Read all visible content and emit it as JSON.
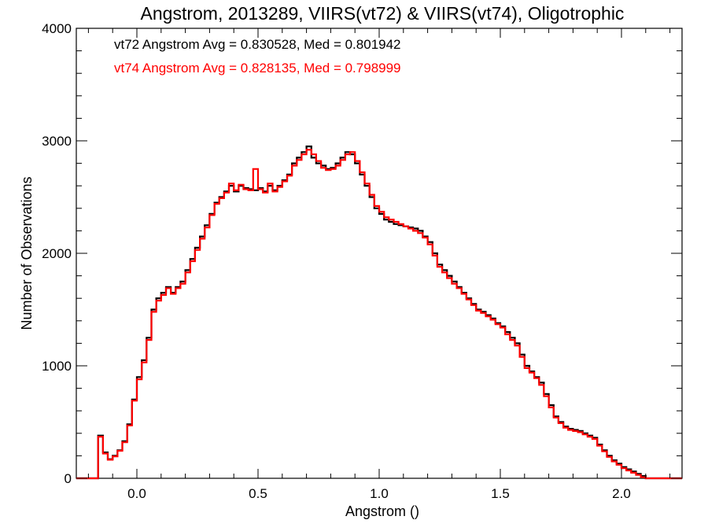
{
  "chart_data": {
    "type": "line",
    "step": true,
    "title": "Angstrom, 2013289, VIIRS(vt72) & VIIRS(vt74), Oligotrophic",
    "xlabel": "Angstrom ()",
    "ylabel": "Number of Observations",
    "xlim": [
      -0.25,
      2.25
    ],
    "ylim": [
      0,
      4000
    ],
    "xticks": [
      "0.0",
      "0.5",
      "1.0",
      "1.5",
      "2.0"
    ],
    "yticks": [
      "0",
      "1000",
      "2000",
      "3000",
      "4000"
    ],
    "grid": false,
    "annotations": [
      {
        "text": "vt72 Angstrom Avg = 0.830528, Med = 0.801942",
        "color": "#000000"
      },
      {
        "text": "vt74 Angstrom Avg = 0.828135, Med = 0.798999",
        "color": "#ff0000"
      }
    ],
    "series": [
      {
        "color": "#000000",
        "x": [
          -0.25,
          -0.165,
          -0.16,
          -0.14,
          -0.12,
          -0.1,
          -0.08,
          -0.06,
          -0.04,
          -0.02,
          0.0,
          0.02,
          0.04,
          0.06,
          0.08,
          0.1,
          0.12,
          0.14,
          0.16,
          0.18,
          0.2,
          0.22,
          0.24,
          0.26,
          0.28,
          0.3,
          0.32,
          0.34,
          0.36,
          0.38,
          0.4,
          0.42,
          0.44,
          0.46,
          0.48,
          0.5,
          0.52,
          0.54,
          0.56,
          0.58,
          0.6,
          0.62,
          0.64,
          0.66,
          0.68,
          0.7,
          0.72,
          0.74,
          0.76,
          0.78,
          0.8,
          0.82,
          0.84,
          0.86,
          0.88,
          0.9,
          0.92,
          0.94,
          0.96,
          0.98,
          1.0,
          1.02,
          1.04,
          1.06,
          1.08,
          1.1,
          1.12,
          1.14,
          1.16,
          1.18,
          1.2,
          1.22,
          1.24,
          1.26,
          1.28,
          1.3,
          1.32,
          1.34,
          1.36,
          1.38,
          1.4,
          1.42,
          1.44,
          1.46,
          1.48,
          1.5,
          1.52,
          1.54,
          1.56,
          1.58,
          1.6,
          1.62,
          1.64,
          1.66,
          1.68,
          1.7,
          1.72,
          1.74,
          1.76,
          1.78,
          1.8,
          1.82,
          1.84,
          1.86,
          1.88,
          1.9,
          1.92,
          1.94,
          1.96,
          1.98,
          2.0,
          2.02,
          2.04,
          2.06,
          2.08,
          2.1,
          2.12,
          2.14,
          2.16,
          2.25
        ],
        "y": [
          0,
          0,
          380,
          230,
          170,
          200,
          250,
          330,
          480,
          700,
          900,
          1050,
          1250,
          1500,
          1600,
          1650,
          1700,
          1650,
          1700,
          1750,
          1850,
          1950,
          2050,
          2150,
          2250,
          2350,
          2450,
          2500,
          2550,
          2600,
          2550,
          2600,
          2580,
          2570,
          2560,
          2580,
          2550,
          2600,
          2560,
          2600,
          2650,
          2700,
          2800,
          2850,
          2900,
          2950,
          2850,
          2800,
          2780,
          2750,
          2760,
          2800,
          2850,
          2900,
          2880,
          2800,
          2700,
          2600,
          2500,
          2400,
          2350,
          2300,
          2280,
          2260,
          2250,
          2240,
          2230,
          2220,
          2200,
          2150,
          2100,
          2000,
          1900,
          1850,
          1800,
          1750,
          1700,
          1650,
          1600,
          1550,
          1500,
          1480,
          1450,
          1420,
          1380,
          1350,
          1300,
          1250,
          1200,
          1100,
          1000,
          950,
          900,
          850,
          750,
          650,
          550,
          500,
          460,
          440,
          430,
          420,
          400,
          380,
          360,
          300,
          250,
          200,
          160,
          130,
          100,
          80,
          60,
          40,
          20,
          0,
          0,
          0,
          0,
          0
        ]
      },
      {
        "color": "#ff0000",
        "x": [
          -0.25,
          -0.165,
          -0.16,
          -0.14,
          -0.12,
          -0.1,
          -0.08,
          -0.06,
          -0.04,
          -0.02,
          0.0,
          0.02,
          0.04,
          0.06,
          0.08,
          0.1,
          0.12,
          0.14,
          0.16,
          0.18,
          0.2,
          0.22,
          0.24,
          0.26,
          0.28,
          0.3,
          0.32,
          0.34,
          0.36,
          0.38,
          0.4,
          0.42,
          0.44,
          0.46,
          0.48,
          0.5,
          0.52,
          0.54,
          0.56,
          0.58,
          0.6,
          0.62,
          0.64,
          0.66,
          0.68,
          0.7,
          0.72,
          0.74,
          0.76,
          0.78,
          0.8,
          0.82,
          0.84,
          0.86,
          0.88,
          0.9,
          0.92,
          0.94,
          0.96,
          0.98,
          1.0,
          1.02,
          1.04,
          1.06,
          1.08,
          1.1,
          1.12,
          1.14,
          1.16,
          1.18,
          1.2,
          1.22,
          1.24,
          1.26,
          1.28,
          1.3,
          1.32,
          1.34,
          1.36,
          1.38,
          1.4,
          1.42,
          1.44,
          1.46,
          1.48,
          1.5,
          1.52,
          1.54,
          1.56,
          1.58,
          1.6,
          1.62,
          1.64,
          1.66,
          1.68,
          1.7,
          1.72,
          1.74,
          1.76,
          1.78,
          1.8,
          1.82,
          1.84,
          1.86,
          1.88,
          1.9,
          1.92,
          1.94,
          1.96,
          1.98,
          2.0,
          2.02,
          2.04,
          2.06,
          2.08,
          2.1,
          2.12,
          2.14,
          2.16,
          2.25
        ],
        "y": [
          0,
          0,
          370,
          220,
          165,
          195,
          245,
          320,
          470,
          690,
          880,
          1030,
          1230,
          1480,
          1580,
          1630,
          1690,
          1640,
          1690,
          1730,
          1830,
          1930,
          2030,
          2130,
          2230,
          2340,
          2440,
          2490,
          2540,
          2620,
          2560,
          2610,
          2570,
          2560,
          2750,
          2570,
          2540,
          2620,
          2550,
          2590,
          2640,
          2690,
          2780,
          2830,
          2880,
          2920,
          2880,
          2820,
          2760,
          2740,
          2750,
          2780,
          2830,
          2880,
          2900,
          2820,
          2720,
          2620,
          2520,
          2420,
          2370,
          2320,
          2300,
          2280,
          2260,
          2240,
          2220,
          2200,
          2180,
          2140,
          2080,
          1980,
          1880,
          1830,
          1780,
          1730,
          1690,
          1640,
          1590,
          1540,
          1490,
          1470,
          1440,
          1410,
          1370,
          1340,
          1280,
          1230,
          1180,
          1080,
          980,
          940,
          890,
          830,
          730,
          630,
          540,
          490,
          450,
          430,
          420,
          410,
          390,
          370,
          350,
          290,
          240,
          190,
          150,
          120,
          90,
          70,
          50,
          30,
          10,
          0,
          0,
          0,
          0,
          0
        ]
      }
    ]
  }
}
